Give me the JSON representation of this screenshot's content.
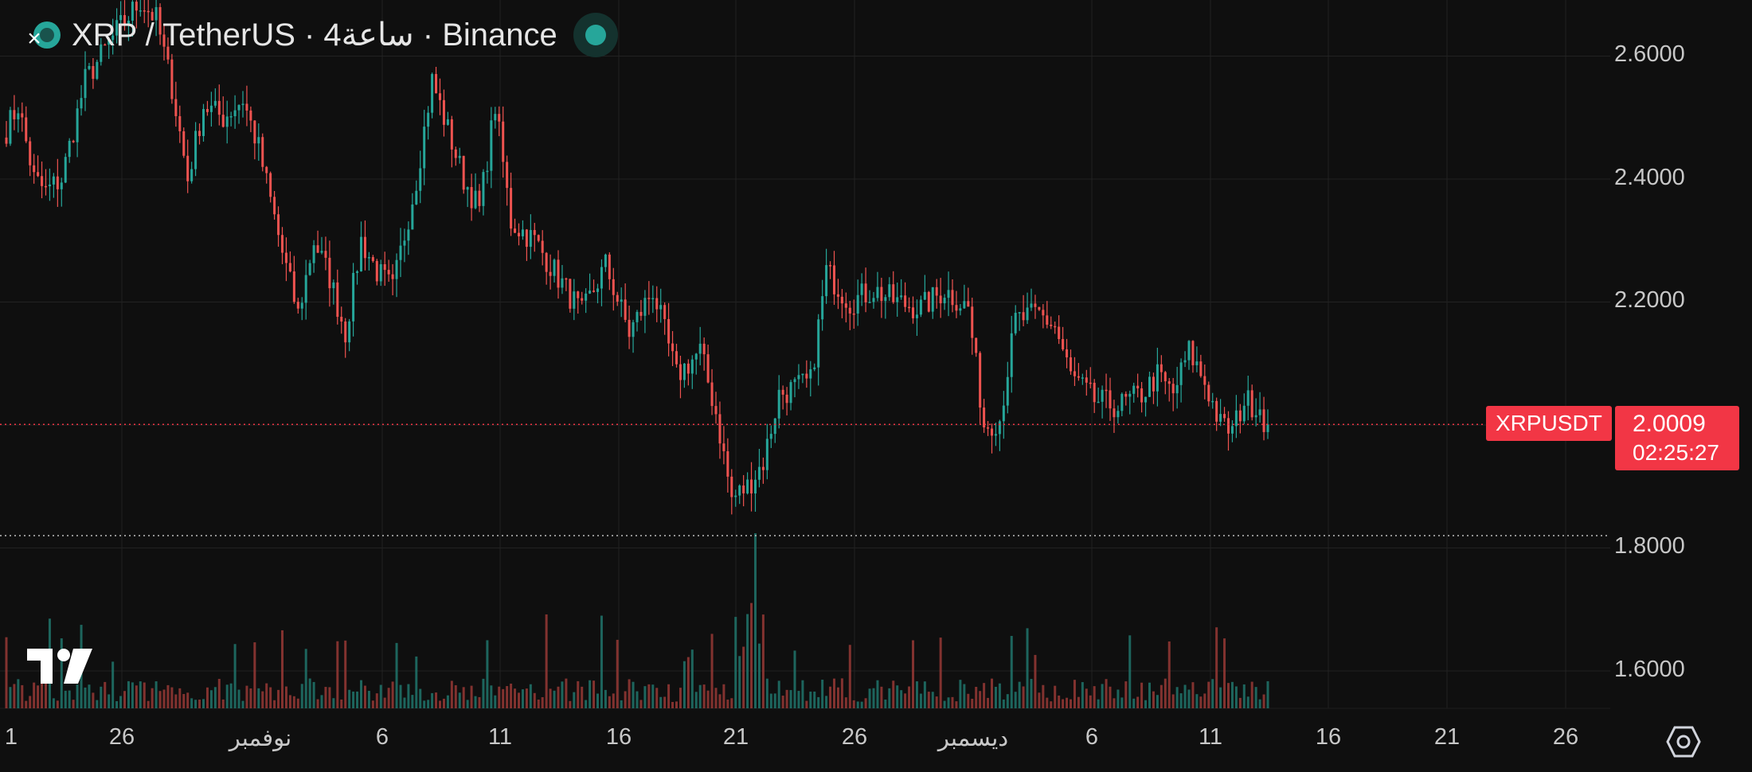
{
  "header": {
    "title": "XRP / TetherUS · 4ساعة · Binance",
    "logo_icon": "xrp-coin-icon",
    "close_icon": "close-icon",
    "status": "market-open-dot"
  },
  "colors": {
    "background": "#0f0f0f",
    "up": "#26a69a",
    "down": "#ef5350",
    "accent_red": "#f23645",
    "grid": "#222222"
  },
  "price_axis": {
    "labels": [
      "2.6000",
      "2.4000",
      "2.2000",
      "1.8000",
      "1.6000"
    ]
  },
  "time_axis": {
    "labels": [
      "1",
      "26",
      "نوفمبر",
      "6",
      "11",
      "16",
      "21",
      "26",
      "ديسمبر",
      "6",
      "11",
      "16",
      "21",
      "26"
    ]
  },
  "last_price": {
    "symbol": "XRPUSDT",
    "price": "2.0009",
    "countdown": "02:25:27"
  },
  "branding": {
    "logo": "tradingview-logo"
  },
  "settings_icon": "settings-icon",
  "chart_data": {
    "type": "candlestick",
    "interval": "4h",
    "symbol": "XRPUSDT",
    "exchange": "Binance",
    "ylim": [
      1.55,
      2.68
    ],
    "last": 2.0009,
    "horizontal_line_dotted": 1.82,
    "path_anchors": [
      [
        0,
        2.48
      ],
      [
        3,
        2.52
      ],
      [
        7,
        2.4
      ],
      [
        10,
        2.38
      ],
      [
        14,
        2.4
      ],
      [
        20,
        2.56
      ],
      [
        28,
        2.64
      ],
      [
        34,
        2.69
      ],
      [
        38,
        2.66
      ],
      [
        42,
        2.55
      ],
      [
        46,
        2.4
      ],
      [
        50,
        2.52
      ],
      [
        55,
        2.5
      ],
      [
        60,
        2.53
      ],
      [
        64,
        2.45
      ],
      [
        70,
        2.28
      ],
      [
        74,
        2.18
      ],
      [
        78,
        2.3
      ],
      [
        82,
        2.24
      ],
      [
        86,
        2.15
      ],
      [
        90,
        2.3
      ],
      [
        94,
        2.25
      ],
      [
        98,
        2.22
      ],
      [
        104,
        2.4
      ],
      [
        108,
        2.56
      ],
      [
        112,
        2.48
      ],
      [
        116,
        2.4
      ],
      [
        120,
        2.35
      ],
      [
        124,
        2.52
      ],
      [
        128,
        2.33
      ],
      [
        134,
        2.3
      ],
      [
        140,
        2.24
      ],
      [
        146,
        2.18
      ],
      [
        152,
        2.26
      ],
      [
        158,
        2.15
      ],
      [
        164,
        2.22
      ],
      [
        170,
        2.08
      ],
      [
        176,
        2.12
      ],
      [
        180,
        2.02
      ],
      [
        184,
        1.88
      ],
      [
        188,
        1.9
      ],
      [
        192,
        1.94
      ],
      [
        196,
        2.05
      ],
      [
        200,
        2.06
      ],
      [
        204,
        2.07
      ],
      [
        208,
        2.25
      ],
      [
        214,
        2.2
      ],
      [
        220,
        2.22
      ],
      [
        226,
        2.2
      ],
      [
        232,
        2.19
      ],
      [
        238,
        2.22
      ],
      [
        244,
        2.19
      ],
      [
        248,
        2.0
      ],
      [
        252,
        2.01
      ],
      [
        256,
        2.17
      ],
      [
        262,
        2.18
      ],
      [
        266,
        2.16
      ],
      [
        270,
        2.08
      ],
      [
        276,
        2.04
      ],
      [
        282,
        2.03
      ],
      [
        288,
        2.05
      ],
      [
        292,
        2.08
      ],
      [
        296,
        2.05
      ],
      [
        300,
        2.12
      ],
      [
        304,
        2.07
      ],
      [
        308,
        2.0
      ],
      [
        311,
        1.99
      ],
      [
        314,
        2.04
      ],
      [
        318,
        2.03
      ],
      [
        320,
        1.99
      ]
    ],
    "volume_style": "bars-colored-by-candle"
  }
}
